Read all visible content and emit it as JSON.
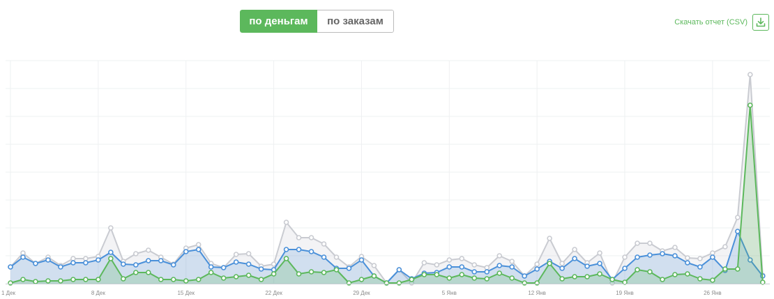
{
  "toggle": {
    "money_label": "по деньгам",
    "orders_label": "по заказам"
  },
  "download": {
    "label": "Скачать отчет (CSV)",
    "icon": "download-icon"
  },
  "colors": {
    "total": "#c9cbd1",
    "blue": "#4a90d9",
    "green": "#5cb85c",
    "grid": "#eef0f2"
  },
  "chart_data": {
    "type": "area",
    "x_ticks": [
      "1 Дек",
      "8 Дек",
      "15 Дек",
      "22 Дек",
      "29 Дек",
      "5 Янв",
      "12 Янв",
      "19 Янв",
      "26 Янв"
    ],
    "grid": true,
    "ylim": [
      0,
      320
    ],
    "series": [
      {
        "key": "total",
        "values": [
          24,
          44,
          29,
          38,
          26,
          36,
          36,
          39,
          80,
          32,
          43,
          48,
          38,
          28,
          51,
          56,
          29,
          23,
          42,
          43,
          25,
          28,
          88,
          66,
          66,
          57,
          38,
          24,
          39,
          26,
          1,
          20,
          1,
          30,
          27,
          34,
          36,
          27,
          23,
          40,
          32,
          11,
          28,
          65,
          29,
          49,
          30,
          44,
          1,
          38,
          58,
          58,
          47,
          52,
          37,
          36,
          44,
          53,
          95,
          300,
          12
        ]
      },
      {
        "key": "blue",
        "values": [
          24,
          38,
          29,
          34,
          24,
          30,
          30,
          34,
          45,
          28,
          27,
          33,
          33,
          27,
          46,
          49,
          24,
          23,
          31,
          28,
          21,
          20,
          49,
          49,
          46,
          38,
          22,
          22,
          34,
          11,
          1,
          20,
          7,
          15,
          16,
          24,
          24,
          17,
          17,
          26,
          24,
          11,
          21,
          32,
          22,
          36,
          25,
          29,
          6,
          22,
          38,
          41,
          43,
          40,
          30,
          24,
          38,
          19,
          75,
          34,
          11
        ]
      },
      {
        "key": "green",
        "values": [
          1,
          6,
          3,
          4,
          4,
          6,
          6,
          6,
          36,
          7,
          16,
          16,
          6,
          6,
          4,
          6,
          16,
          8,
          10,
          12,
          6,
          14,
          36,
          14,
          17,
          16,
          20,
          1,
          6,
          11,
          1,
          1,
          6,
          13,
          13,
          8,
          13,
          8,
          7,
          15,
          8,
          1,
          1,
          29,
          7,
          10,
          10,
          14,
          6,
          2,
          20,
          17,
          6,
          13,
          14,
          7,
          5,
          21,
          21,
          256,
          2
        ]
      }
    ]
  }
}
